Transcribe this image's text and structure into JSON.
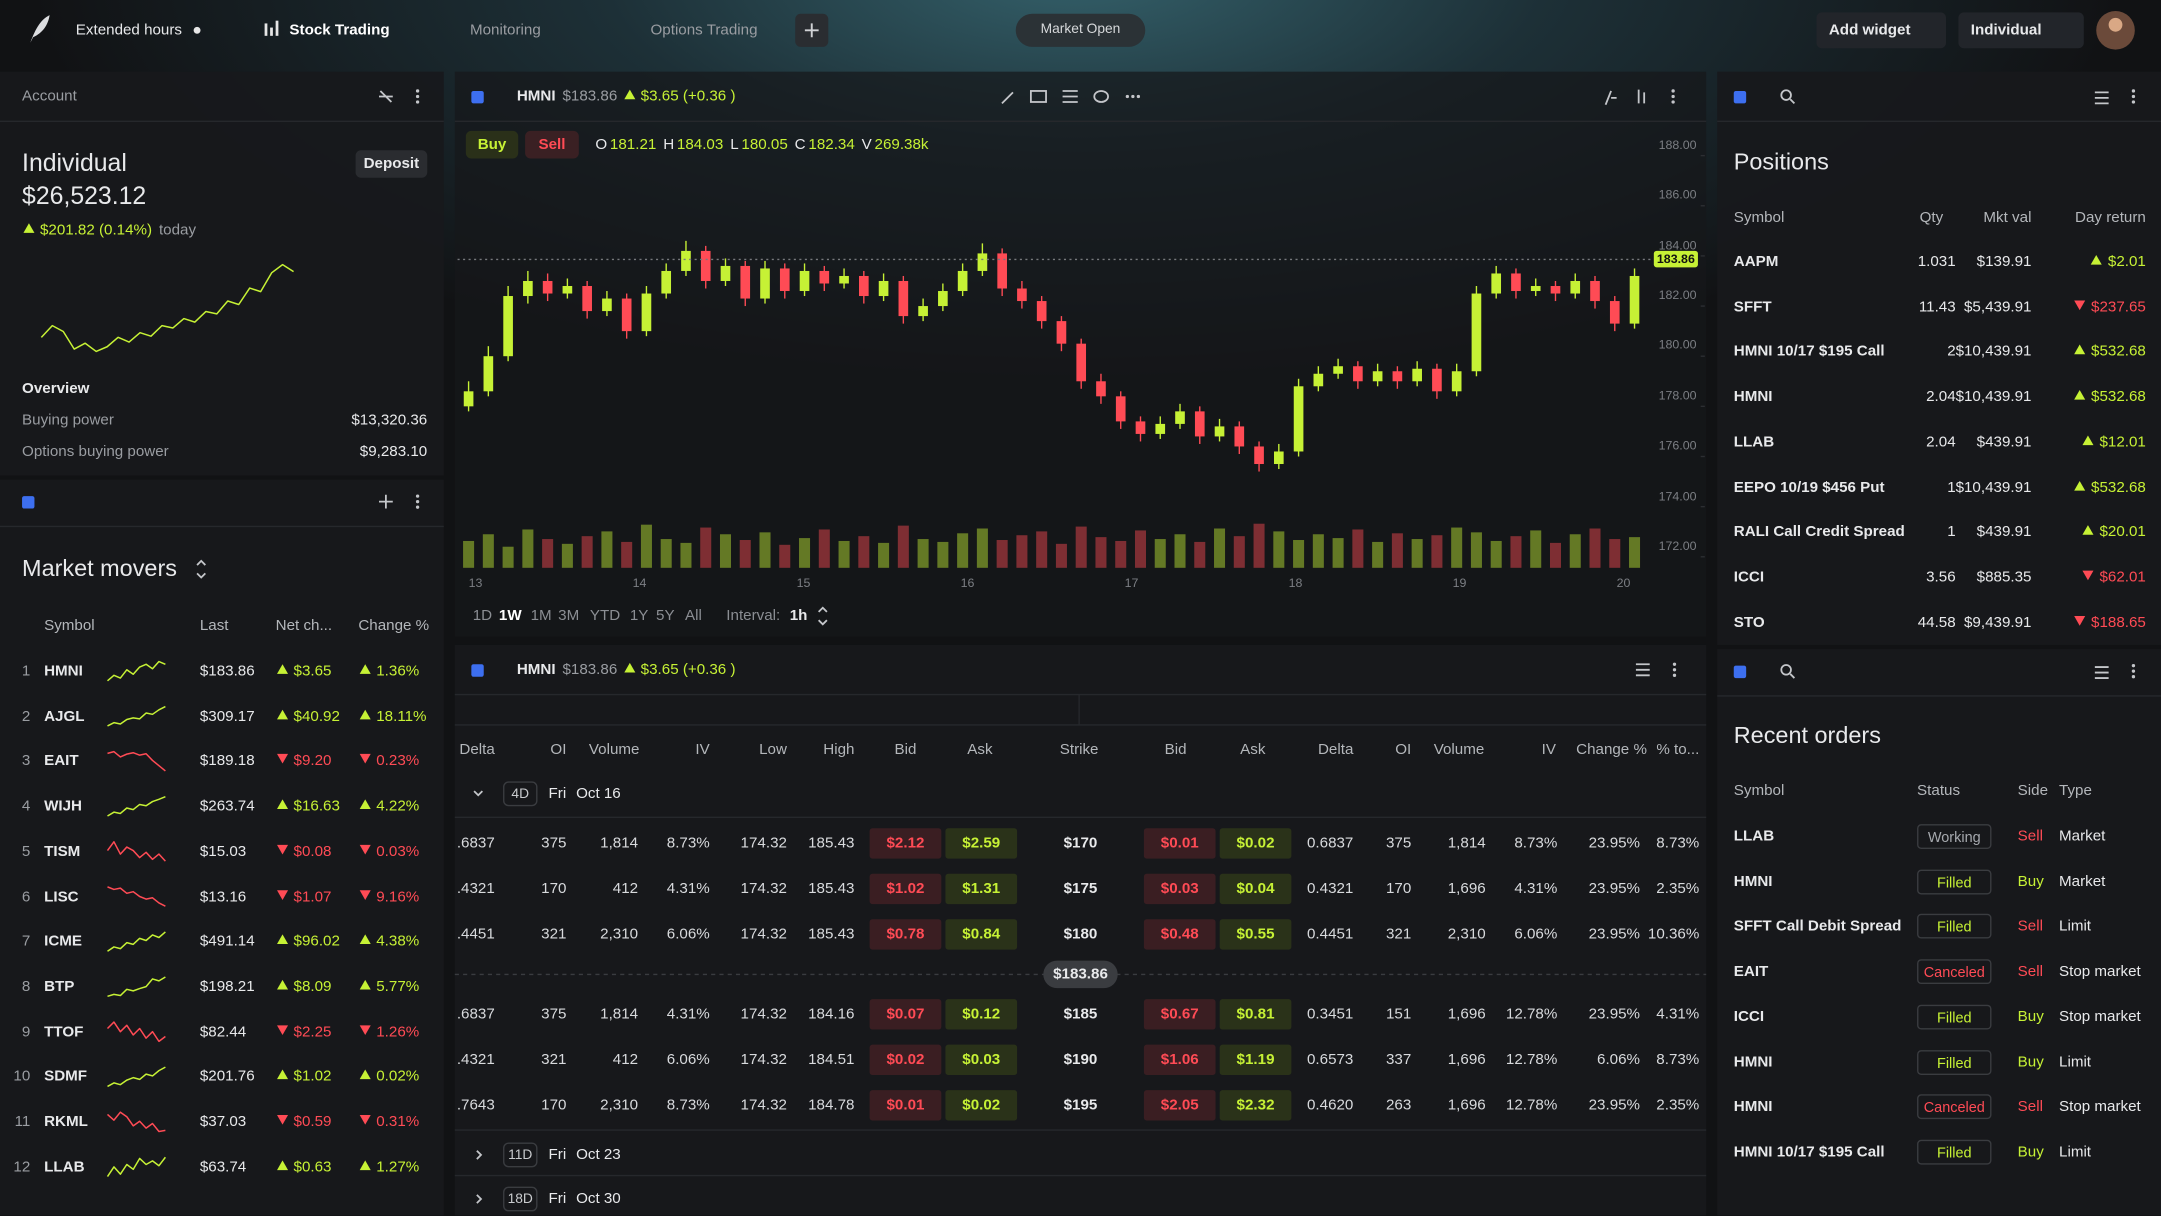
{
  "theme": {
    "up": "#c6f135",
    "down": "#ff4b55",
    "neutral": "#a6a9ae",
    "accent": "#3d6ff0"
  },
  "topbar": {
    "extended_hours": "Extended hours",
    "tabs": [
      "Stock Trading",
      "Monitoring",
      "Options Trading"
    ],
    "active_tab": 0,
    "market_status": "Market Open",
    "add_widget": "Add widget",
    "account_select": "Individual"
  },
  "account": {
    "title": "Account",
    "name": "Individual",
    "deposit": "Deposit",
    "balance": "$26,523.12",
    "change": "$201.82 (0.14%)",
    "change_suffix": "today",
    "sparkline": [
      3,
      4,
      3.5,
      2,
      2.5,
      1.8,
      2.2,
      3,
      2.6,
      3.4,
      3.1,
      4,
      3.8,
      4.6,
      4.3,
      5.2,
      5,
      6.1,
      5.8,
      7.2,
      6.9,
      8.5,
      9.2,
      8.6
    ],
    "overview_title": "Overview",
    "rows": [
      [
        "Buying power",
        "$13,320.36"
      ],
      [
        "Options buying power",
        "$9,283.10"
      ]
    ]
  },
  "market_movers": {
    "title": "Market movers",
    "columns": [
      "Symbol",
      "Last",
      "Net ch...",
      "Change %"
    ],
    "rows": [
      {
        "rank": 1,
        "symbol": "HMNI",
        "last": "$183.86",
        "net": "$3.65",
        "pct": "1.36%",
        "trend": "up",
        "spark": [
          3,
          4,
          3.5,
          5,
          4.2,
          5.5,
          6,
          5.2,
          6.5,
          6
        ]
      },
      {
        "rank": 2,
        "symbol": "AJGL",
        "last": "$309.17",
        "net": "$40.92",
        "pct": "18.11%",
        "trend": "up",
        "spark": [
          1,
          2,
          1.6,
          3,
          3.5,
          3.2,
          5,
          4.6,
          6,
          7
        ]
      },
      {
        "rank": 3,
        "symbol": "EAIT",
        "last": "$189.18",
        "net": "$9.20",
        "pct": "0.23%",
        "trend": "down",
        "spark": [
          6,
          6.5,
          5,
          5.8,
          6.2,
          5.5,
          5.9,
          4,
          2.5,
          1
        ]
      },
      {
        "rank": 4,
        "symbol": "WIJH",
        "last": "$263.74",
        "net": "$16.63",
        "pct": "4.22%",
        "trend": "up",
        "spark": [
          1,
          2.2,
          1.8,
          3.5,
          3,
          4.6,
          4.2,
          5.5,
          6.2,
          7
        ]
      },
      {
        "rank": 5,
        "symbol": "TISM",
        "last": "$15.03",
        "net": "$0.08",
        "pct": "0.03%",
        "trend": "down",
        "spark": [
          4,
          4.5,
          3.8,
          4.2,
          4,
          3.6,
          3.9,
          3.5,
          3.8,
          3.4
        ]
      },
      {
        "rank": 6,
        "symbol": "LISC",
        "last": "$13.16",
        "net": "$1.07",
        "pct": "9.16%",
        "trend": "down",
        "spark": [
          7,
          6.2,
          6.6,
          5,
          5.5,
          4,
          3.2,
          3.6,
          2,
          1
        ]
      },
      {
        "rank": 7,
        "symbol": "ICME",
        "last": "$491.14",
        "net": "$96.02",
        "pct": "4.38%",
        "trend": "up",
        "spark": [
          2,
          3,
          2.6,
          4,
          3.6,
          5,
          4.5,
          5.8,
          5.2,
          6.5
        ]
      },
      {
        "rank": 8,
        "symbol": "BTP",
        "last": "$198.21",
        "net": "$8.09",
        "pct": "5.77%",
        "trend": "up",
        "spark": [
          1,
          1.5,
          1.2,
          2.8,
          2.4,
          3,
          3.5,
          5.5,
          5,
          6
        ]
      },
      {
        "rank": 9,
        "symbol": "TTOF",
        "last": "$82.44",
        "net": "$2.25",
        "pct": "1.26%",
        "trend": "down",
        "spark": [
          5,
          5.4,
          4.8,
          5.2,
          4.6,
          5,
          4.4,
          4.8,
          4.2,
          4.5
        ]
      },
      {
        "rank": 10,
        "symbol": "SDMF",
        "last": "$201.76",
        "net": "$1.02",
        "pct": "0.02%",
        "trend": "up",
        "spark": [
          1,
          2,
          1.5,
          2.8,
          3.5,
          3,
          4.5,
          4,
          5.5,
          6.5
        ]
      },
      {
        "rank": 11,
        "symbol": "RKML",
        "last": "$37.03",
        "net": "$0.59",
        "pct": "0.31%",
        "trend": "down",
        "spark": [
          6,
          5.5,
          6.2,
          5.8,
          5,
          5.4,
          4.8,
          5.2,
          4.5,
          4.6
        ]
      },
      {
        "rank": 12,
        "symbol": "LLAB",
        "last": "$63.74",
        "net": "$0.63",
        "pct": "1.27%",
        "trend": "up",
        "spark": [
          4,
          4.8,
          4.2,
          5,
          4.6,
          5.5,
          5,
          5.3,
          4.9,
          5.6
        ]
      }
    ]
  },
  "chart": {
    "type": "candlestick",
    "symbol": "HMNI",
    "price": "$183.86",
    "change": "$3.65 (+0.36 )",
    "buy": "Buy",
    "sell": "Sell",
    "ohlcv": [
      {
        "label": "O",
        "value": "181.21"
      },
      {
        "label": "H",
        "value": "184.03"
      },
      {
        "label": "L",
        "value": "180.05"
      },
      {
        "label": "C",
        "value": "182.34"
      },
      {
        "label": "V",
        "value": "269.38k"
      }
    ],
    "ylim": [
      171.56,
      189.26
    ],
    "yticks": [
      {
        "value": 188,
        "label": "188.00"
      },
      {
        "value": 186,
        "label": "186.00"
      },
      {
        "value": 184,
        "label": "184.00"
      },
      {
        "value": 182,
        "label": "182.00"
      },
      {
        "value": 180,
        "label": "180.00"
      },
      {
        "value": 178,
        "label": "178.00"
      },
      {
        "value": 176,
        "label": "176.00"
      },
      {
        "value": 174,
        "label": "174.00"
      },
      {
        "value": 172,
        "label": "172.00"
      }
    ],
    "xticks": [
      13,
      14,
      15,
      16,
      17,
      18,
      19,
      20
    ],
    "current_price": 183.86,
    "ranges": [
      "1D",
      "1W",
      "1M",
      "3M",
      "YTD",
      "1Y",
      "5Y",
      "All"
    ],
    "active_range": 1,
    "interval_label": "Interval:",
    "interval": "1h",
    "candles": [
      [
        178.0,
        179.0,
        177.8,
        178.6
      ],
      [
        178.6,
        180.4,
        178.4,
        180.0
      ],
      [
        180.0,
        182.8,
        179.8,
        182.4
      ],
      [
        182.4,
        183.4,
        182.1,
        183.0
      ],
      [
        183.0,
        183.3,
        182.2,
        182.5
      ],
      [
        182.5,
        183.1,
        182.3,
        182.8
      ],
      [
        182.8,
        183.0,
        181.5,
        181.8
      ],
      [
        181.8,
        182.6,
        181.6,
        182.3
      ],
      [
        182.3,
        182.5,
        180.7,
        181.0
      ],
      [
        181.0,
        182.8,
        180.8,
        182.5
      ],
      [
        182.5,
        183.7,
        182.3,
        183.4
      ],
      [
        183.4,
        184.6,
        183.2,
        184.2
      ],
      [
        184.2,
        184.4,
        182.7,
        183.0
      ],
      [
        183.0,
        183.9,
        182.8,
        183.6
      ],
      [
        183.6,
        183.8,
        182.0,
        182.3
      ],
      [
        182.3,
        183.8,
        182.1,
        183.5
      ],
      [
        183.5,
        183.7,
        182.3,
        182.6
      ],
      [
        182.6,
        183.7,
        182.4,
        183.4
      ],
      [
        183.4,
        183.6,
        182.6,
        182.9
      ],
      [
        182.9,
        183.5,
        182.7,
        183.2
      ],
      [
        183.2,
        183.4,
        182.1,
        182.4
      ],
      [
        182.4,
        183.3,
        182.2,
        183.0
      ],
      [
        183.0,
        183.2,
        181.3,
        181.6
      ],
      [
        181.6,
        182.3,
        181.4,
        182.0
      ],
      [
        182.0,
        182.9,
        181.8,
        182.6
      ],
      [
        182.6,
        183.7,
        182.4,
        183.4
      ],
      [
        183.4,
        184.5,
        183.2,
        184.1
      ],
      [
        184.1,
        184.3,
        182.4,
        182.7
      ],
      [
        182.7,
        183.0,
        181.9,
        182.2
      ],
      [
        182.2,
        182.4,
        181.1,
        181.4
      ],
      [
        181.4,
        181.6,
        180.2,
        180.5
      ],
      [
        180.5,
        180.7,
        178.7,
        179.0
      ],
      [
        179.0,
        179.3,
        178.1,
        178.4
      ],
      [
        178.4,
        178.6,
        177.1,
        177.4
      ],
      [
        177.4,
        177.6,
        176.6,
        176.9
      ],
      [
        176.9,
        177.6,
        176.7,
        177.3
      ],
      [
        177.3,
        178.1,
        177.1,
        177.8
      ],
      [
        177.8,
        178.0,
        176.5,
        176.8
      ],
      [
        176.8,
        177.5,
        176.6,
        177.2
      ],
      [
        177.2,
        177.4,
        176.1,
        176.4
      ],
      [
        176.4,
        176.6,
        175.4,
        175.7
      ],
      [
        175.7,
        176.5,
        175.5,
        176.2
      ],
      [
        176.2,
        179.1,
        176.0,
        178.8
      ],
      [
        178.8,
        179.6,
        178.6,
        179.3
      ],
      [
        179.3,
        179.9,
        179.1,
        179.6
      ],
      [
        179.6,
        179.8,
        178.7,
        179.0
      ],
      [
        179.0,
        179.7,
        178.8,
        179.4
      ],
      [
        179.4,
        179.6,
        178.7,
        179.0
      ],
      [
        179.0,
        179.8,
        178.8,
        179.5
      ],
      [
        179.5,
        179.7,
        178.3,
        178.6
      ],
      [
        178.6,
        179.7,
        178.4,
        179.4
      ],
      [
        179.4,
        182.8,
        179.2,
        182.5
      ],
      [
        182.5,
        183.6,
        182.3,
        183.3
      ],
      [
        183.3,
        183.5,
        182.3,
        182.6
      ],
      [
        182.6,
        183.1,
        182.4,
        182.8
      ],
      [
        182.8,
        183.0,
        182.2,
        182.5
      ],
      [
        182.5,
        183.3,
        182.3,
        183.0
      ],
      [
        183.0,
        183.2,
        181.9,
        182.2
      ],
      [
        182.2,
        182.4,
        181.0,
        181.3
      ],
      [
        181.3,
        183.5,
        181.1,
        183.2
      ]
    ],
    "volumes": [
      28,
      35,
      22,
      40,
      30,
      25,
      33,
      38,
      27,
      45,
      30,
      26,
      42,
      35,
      29,
      37,
      24,
      31,
      40,
      28,
      33,
      26,
      44,
      30,
      27,
      36,
      41,
      29,
      34,
      38,
      25,
      43,
      32,
      28,
      39,
      30,
      35,
      27,
      41,
      33,
      46,
      38,
      29,
      35,
      31,
      40,
      27,
      36,
      30,
      34,
      42,
      37,
      28,
      33,
      39,
      26,
      35,
      41,
      30,
      32
    ]
  },
  "options": {
    "symbol": "HMNI",
    "price": "$183.86",
    "change": "$3.65 (+0.36 )",
    "columns": [
      "Delta",
      "OI",
      "Volume",
      "IV",
      "Low",
      "High",
      "Bid",
      "Ask",
      "Strike",
      "Bid",
      "Ask",
      "Delta",
      "OI",
      "Volume",
      "IV",
      "Change %",
      "% to..."
    ],
    "price_marker": "$183.86",
    "groups": [
      {
        "dte": "4D",
        "day": "Fri",
        "date": "Oct 16",
        "rows": [
          [
            ".6837",
            "375",
            "1,814",
            "8.73%",
            "174.32",
            "185.43",
            "$2.12",
            "$2.59",
            "$170",
            "$0.01",
            "$0.02",
            "0.6837",
            "375",
            "1,814",
            "8.73%",
            "23.95%",
            "8.73%"
          ],
          [
            ".4321",
            "170",
            "412",
            "4.31%",
            "174.32",
            "185.43",
            "$1.02",
            "$1.31",
            "$175",
            "$0.03",
            "$0.04",
            "0.4321",
            "170",
            "1,696",
            "4.31%",
            "23.95%",
            "2.35%"
          ],
          [
            ".4451",
            "321",
            "2,310",
            "6.06%",
            "174.32",
            "185.43",
            "$0.78",
            "$0.84",
            "$180",
            "$0.48",
            "$0.55",
            "0.4451",
            "321",
            "2,310",
            "6.06%",
            "23.95%",
            "10.36%"
          ],
          [
            ".6837",
            "375",
            "1,814",
            "4.31%",
            "174.32",
            "184.16",
            "$0.07",
            "$0.12",
            "$185",
            "$0.67",
            "$0.81",
            "0.3451",
            "151",
            "1,696",
            "12.78%",
            "23.95%",
            "4.31%"
          ],
          [
            ".4321",
            "321",
            "412",
            "6.06%",
            "174.32",
            "184.51",
            "$0.02",
            "$0.03",
            "$190",
            "$1.06",
            "$1.19",
            "0.6573",
            "337",
            "1,696",
            "12.78%",
            "6.06%",
            "8.73%"
          ],
          [
            ".7643",
            "170",
            "2,310",
            "8.73%",
            "174.32",
            "184.78",
            "$0.01",
            "$0.02",
            "$195",
            "$2.05",
            "$2.32",
            "0.4620",
            "263",
            "1,696",
            "12.78%",
            "23.95%",
            "2.35%"
          ]
        ]
      },
      {
        "dte": "11D",
        "day": "Fri",
        "date": "Oct 23"
      },
      {
        "dte": "18D",
        "day": "Fri",
        "date": "Oct 30"
      }
    ]
  },
  "positions": {
    "title": "Positions",
    "columns": [
      "Symbol",
      "Qty",
      "Mkt val",
      "Day return"
    ],
    "rows": [
      {
        "symbol": "AAPM",
        "qty": "1.031",
        "value": "$139.91",
        "ret": "$2.01",
        "trend": "up"
      },
      {
        "symbol": "SFFT",
        "qty": "11.43",
        "value": "$5,439.91",
        "ret": "$237.65",
        "trend": "down"
      },
      {
        "symbol": "HMNI 10/17 $195 Call",
        "qty": "2",
        "value": "$10,439.91",
        "ret": "$532.68",
        "trend": "up"
      },
      {
        "symbol": "HMNI",
        "qty": "2.04",
        "value": "$10,439.91",
        "ret": "$532.68",
        "trend": "up"
      },
      {
        "symbol": "LLAB",
        "qty": "2.04",
        "value": "$439.91",
        "ret": "$12.01",
        "trend": "up"
      },
      {
        "symbol": "EEPO 10/19 $456 Put",
        "qty": "1",
        "value": "$10,439.91",
        "ret": "$532.68",
        "trend": "up"
      },
      {
        "symbol": "RALI Call Credit Spread",
        "qty": "1",
        "value": "$439.91",
        "ret": "$20.01",
        "trend": "up"
      },
      {
        "symbol": "ICCI",
        "qty": "3.56",
        "value": "$885.35",
        "ret": "$62.01",
        "trend": "down"
      },
      {
        "symbol": "STO",
        "qty": "44.58",
        "value": "$9,439.91",
        "ret": "$188.65",
        "trend": "down"
      }
    ]
  },
  "orders": {
    "title": "Recent orders",
    "columns": [
      "Symbol",
      "Status",
      "Side",
      "Type"
    ],
    "rows": [
      {
        "symbol": "LLAB",
        "status": "Working",
        "status_tone": "neutral",
        "side": "Sell",
        "side_tone": "down",
        "type": "Market"
      },
      {
        "symbol": "HMNI",
        "status": "Filled",
        "status_tone": "up",
        "side": "Buy",
        "side_tone": "up",
        "type": "Market"
      },
      {
        "symbol": "SFFT Call Debit Spread",
        "status": "Filled",
        "status_tone": "up",
        "side": "Sell",
        "side_tone": "down",
        "type": "Limit"
      },
      {
        "symbol": "EAIT",
        "status": "Canceled",
        "status_tone": "down",
        "side": "Sell",
        "side_tone": "down",
        "type": "Stop market"
      },
      {
        "symbol": "ICCI",
        "status": "Filled",
        "status_tone": "up",
        "side": "Buy",
        "side_tone": "up",
        "type": "Stop market"
      },
      {
        "symbol": "HMNI",
        "status": "Filled",
        "status_tone": "up",
        "side": "Buy",
        "side_tone": "up",
        "type": "Limit"
      },
      {
        "symbol": "HMNI",
        "status": "Canceled",
        "status_tone": "down",
        "side": "Sell",
        "side_tone": "down",
        "type": "Stop market"
      },
      {
        "symbol": "HMNI 10/17 $195 Call",
        "status": "Filled",
        "status_tone": "up",
        "side": "Buy",
        "side_tone": "up",
        "type": "Limit"
      }
    ]
  }
}
